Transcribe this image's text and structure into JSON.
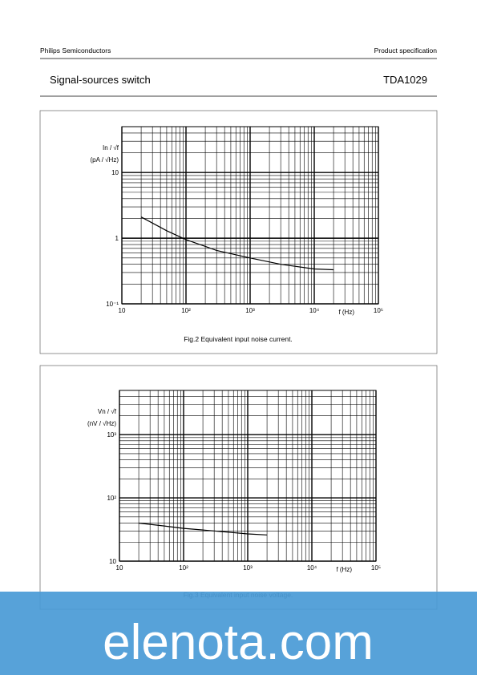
{
  "header": {
    "company": "Philips Semiconductors",
    "doc_type": "Product specification",
    "title": "Signal-sources switch",
    "part": "TDA1029"
  },
  "chart_data": [
    {
      "type": "line",
      "caption": "Fig.2  Equivalent input noise current.",
      "x_label": "f (Hz)",
      "y_label": "In / √f",
      "y_unit": "(pA / √Hz)",
      "x": [
        20,
        50,
        100,
        300,
        1000,
        3000,
        10000,
        20000
      ],
      "series": [
        {
          "color": "#000000",
          "values": [
            2.1,
            1.3,
            0.95,
            0.65,
            0.5,
            0.4,
            0.34,
            0.33
          ]
        }
      ],
      "xlim": [
        10,
        100000
      ],
      "ylim": [
        0.1,
        50
      ],
      "log_x": true,
      "log_y": true,
      "grid": true,
      "xticks": [
        10,
        {
          "value": 100,
          "label": "10²"
        },
        {
          "value": 1000,
          "label": "10³"
        },
        {
          "value": 10000,
          "label": "10⁴"
        },
        {
          "value": 100000,
          "label": "10⁵"
        }
      ],
      "yticks": [
        {
          "value": 0.1,
          "label": "10⁻¹"
        },
        1,
        10
      ]
    },
    {
      "type": "line",
      "caption": "Fig.3  Equivalent input noise voltage.",
      "x_label": "f (Hz)",
      "y_label": "Vn / √f",
      "y_unit": "(nV / √Hz)",
      "x": [
        20,
        50,
        100,
        300,
        1000,
        2000
      ],
      "series": [
        {
          "color": "#000000",
          "values": [
            40,
            36,
            33,
            30,
            27,
            26
          ]
        }
      ],
      "xlim": [
        10,
        100000
      ],
      "ylim": [
        10,
        5000
      ],
      "log_x": true,
      "log_y": true,
      "grid": true,
      "xticks": [
        10,
        {
          "value": 100,
          "label": "10²"
        },
        {
          "value": 1000,
          "label": "10³"
        },
        {
          "value": 10000,
          "label": "10⁴"
        },
        {
          "value": 100000,
          "label": "10⁵"
        }
      ],
      "yticks": [
        10,
        {
          "value": 100,
          "label": "10²"
        },
        {
          "value": 1000,
          "label": "10³"
        }
      ]
    }
  ],
  "watermark": "elenota.com"
}
